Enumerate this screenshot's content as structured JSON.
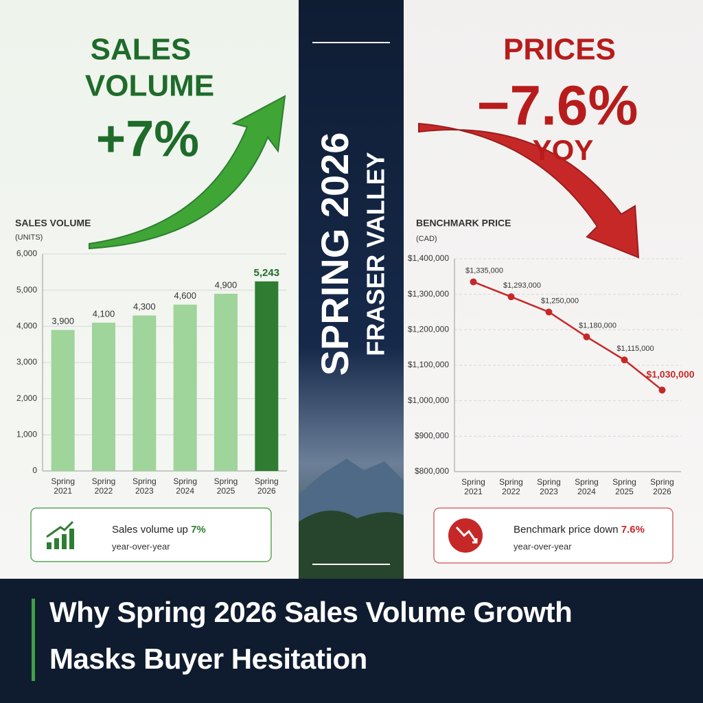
{
  "left_banner": {
    "line1": "SALES",
    "line2": "VOLUME",
    "figure": "+7%"
  },
  "right_banner": {
    "line1": "PRICES",
    "figure": "−7.6%",
    "line3": "YOY"
  },
  "center": {
    "line1": "SPRING 2026",
    "line2": "FRASER VALLEY"
  },
  "chart_data": [
    {
      "type": "bar",
      "title": "SALES VOLUME",
      "subtitle": "(UNITS)",
      "categories": [
        "Spring 2021",
        "Spring 2022",
        "Spring 2023",
        "Spring 2024",
        "Spring 2025",
        "Spring 2026"
      ],
      "values": [
        3900,
        4100,
        4300,
        4600,
        4900,
        5243
      ],
      "value_labels": [
        "3,900",
        "4,100",
        "4,300",
        "4,600",
        "4,900",
        "5,243"
      ],
      "colors": [
        "#9fd49a",
        "#9fd49a",
        "#9fd49a",
        "#9fd49a",
        "#9fd49a",
        "#2e7d32"
      ],
      "ylim": [
        0,
        6000
      ],
      "yticks": [
        0,
        {
          "value": 1000,
          "label": "1,000"
        },
        {
          "value": 2000,
          "label": "2,000"
        },
        {
          "value": 3000,
          "label": "3,000"
        },
        {
          "value": 4000,
          "label": "4,000"
        },
        {
          "value": 5000,
          "label": "5,000"
        },
        {
          "value": 6000,
          "label": "6,000"
        }
      ],
      "grid": true
    },
    {
      "type": "line",
      "title": "BENCHMARK PRICE",
      "subtitle": "(CAD)",
      "categories": [
        "Spring 2021",
        "Spring 2022",
        "Spring 2023",
        "Spring 2024",
        "Spring 2025",
        "Spring 2026"
      ],
      "values": [
        1335000,
        1293000,
        1250000,
        1180000,
        1115000,
        1030000
      ],
      "value_labels": [
        "$1,335,000",
        "$1,293,000",
        "$1,250,000",
        "$1,180,000",
        "$1,115,000",
        "$1,030,000"
      ],
      "color": "#c62828",
      "ylim": [
        800000,
        1400000
      ],
      "yticks": [
        {
          "value": 800000,
          "label": "$800,000"
        },
        {
          "value": 900000,
          "label": "$900,000"
        },
        {
          "value": 1000000,
          "label": "$1,000,000"
        },
        {
          "value": 1100000,
          "label": "$1,100,000"
        },
        {
          "value": 1200000,
          "label": "$1,200,000"
        },
        {
          "value": 1300000,
          "label": "$1,300,000"
        },
        {
          "value": 1400000,
          "label": "$1,400,000"
        }
      ],
      "grid": true
    }
  ],
  "callouts": [
    {
      "text": "Sales volume up ",
      "highlight": "7%",
      "sub": "year-over-year"
    },
    {
      "text": "Benchmark price down ",
      "highlight": "7.6%",
      "sub": "year-over-year"
    }
  ],
  "headline_lines": [
    "Why Spring 2026 Sales Volume Growth",
    "Masks Buyer Hesitation"
  ]
}
